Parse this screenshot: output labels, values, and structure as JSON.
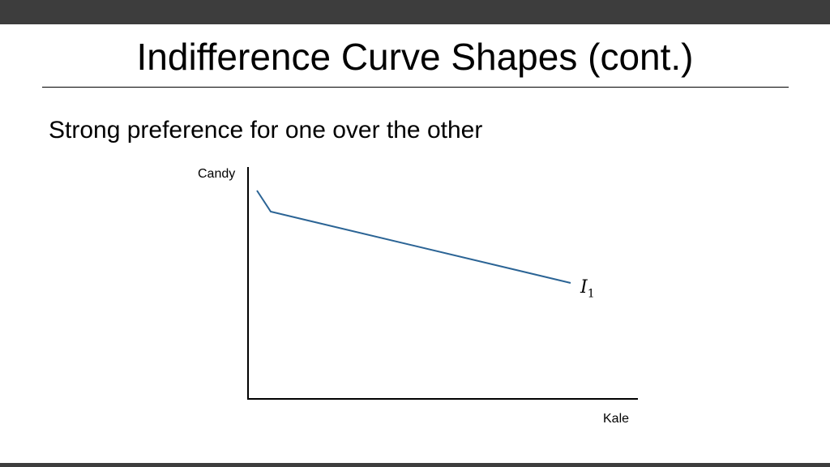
{
  "slide": {
    "title": "Indifference Curve Shapes (cont.)",
    "subtitle": "Strong preference for one over the other"
  },
  "colors": {
    "bar": "#3d3d3d",
    "curve": "#2b6495",
    "axis": "#000000"
  },
  "diagram": {
    "y_axis_label": "Candy",
    "x_axis_label": "Kale",
    "curve": {
      "label_letter": "I",
      "label_subscript": "1"
    }
  }
}
